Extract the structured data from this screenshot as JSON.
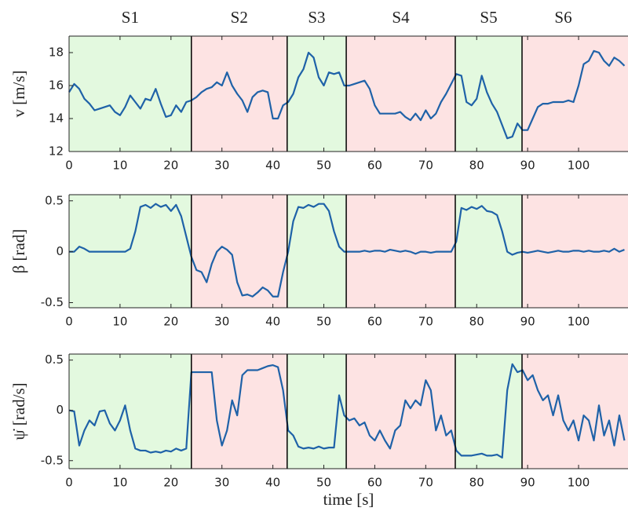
{
  "chart_data": [
    {
      "type": "line",
      "ylabel": "v [m/s]",
      "color": "#1f62a8",
      "segments": [
        {
          "label": "S1",
          "start": 0,
          "end": 24,
          "color": "#e3f9df"
        },
        {
          "label": "S2",
          "start": 24,
          "end": 42.8,
          "color": "#fde3e3"
        },
        {
          "label": "S3",
          "start": 42.8,
          "end": 54.4,
          "color": "#e3f9df"
        },
        {
          "label": "S4",
          "start": 54.4,
          "end": 75.8,
          "color": "#fde3e3"
        },
        {
          "label": "S5",
          "start": 75.8,
          "end": 88.9,
          "color": "#e3f9df"
        },
        {
          "label": "S6",
          "start": 88.9,
          "end": 109.7,
          "color": "#fde3e3"
        }
      ],
      "x": [
        0,
        1,
        2,
        3,
        4,
        5,
        6,
        7,
        8,
        9,
        10,
        11,
        12,
        13,
        14,
        15,
        16,
        17,
        18,
        19,
        20,
        21,
        22,
        23,
        24,
        25,
        26,
        27,
        28,
        29,
        30,
        31,
        32,
        33,
        34,
        35,
        36,
        37,
        38,
        39,
        40,
        41,
        42,
        43,
        44,
        45,
        46,
        47,
        48,
        49,
        50,
        51,
        52,
        53,
        54,
        55,
        56,
        57,
        58,
        59,
        60,
        61,
        62,
        63,
        64,
        65,
        66,
        67,
        68,
        69,
        70,
        71,
        72,
        73,
        74,
        75,
        76,
        77,
        78,
        79,
        80,
        81,
        82,
        83,
        84,
        85,
        86,
        87,
        88,
        89,
        90,
        91,
        92,
        93,
        94,
        95,
        96,
        97,
        98,
        99,
        100,
        101,
        102,
        103,
        104,
        105,
        106,
        107,
        108,
        109
      ],
      "values": [
        15.6,
        16.1,
        15.8,
        15.2,
        14.9,
        14.5,
        14.6,
        14.7,
        14.8,
        14.4,
        14.2,
        14.7,
        15.4,
        15.0,
        14.6,
        15.2,
        15.1,
        15.8,
        14.9,
        14.1,
        14.2,
        14.8,
        14.4,
        15.0,
        15.1,
        15.3,
        15.6,
        15.8,
        15.9,
        16.2,
        16.0,
        16.8,
        16.0,
        15.5,
        15.1,
        14.4,
        15.3,
        15.6,
        15.7,
        15.6,
        14.0,
        14.0,
        14.8,
        15.0,
        15.5,
        16.5,
        17.0,
        18.0,
        17.7,
        16.5,
        16.0,
        16.8,
        16.7,
        16.8,
        16.0,
        16.0,
        16.1,
        16.2,
        16.3,
        15.8,
        14.8,
        14.3,
        14.3,
        14.3,
        14.3,
        14.4,
        14.1,
        13.9,
        14.3,
        13.9,
        14.5,
        14.0,
        14.3,
        15.0,
        15.5,
        16.1,
        16.7,
        16.6,
        15.0,
        14.8,
        15.2,
        16.6,
        15.6,
        14.9,
        14.4,
        13.6,
        12.8,
        12.9,
        13.7,
        13.3,
        13.3,
        14.0,
        14.7,
        14.9,
        14.9,
        15.0,
        15.0,
        15.0,
        15.1,
        15.0,
        16.0,
        17.3,
        17.5,
        18.1,
        18.0,
        17.5,
        17.2,
        17.7,
        17.5,
        17.2
      ],
      "xlim": [
        0,
        109.7
      ],
      "xticks": [
        0,
        10,
        20,
        30,
        40,
        50,
        60,
        70,
        80,
        90,
        100
      ],
      "ylim": [
        12,
        19
      ],
      "yticks": [
        12,
        14,
        16,
        18
      ]
    },
    {
      "type": "line",
      "ylabel": "β [rad]",
      "color": "#1f62a8",
      "x": [
        0,
        1,
        2,
        3,
        4,
        5,
        6,
        7,
        8,
        9,
        10,
        11,
        12,
        13,
        14,
        15,
        16,
        17,
        18,
        19,
        20,
        21,
        22,
        23,
        24,
        25,
        26,
        27,
        28,
        29,
        30,
        31,
        32,
        33,
        34,
        35,
        36,
        37,
        38,
        39,
        40,
        41,
        42,
        43,
        44,
        45,
        46,
        47,
        48,
        49,
        50,
        51,
        52,
        53,
        54,
        55,
        56,
        57,
        58,
        59,
        60,
        61,
        62,
        63,
        64,
        65,
        66,
        67,
        68,
        69,
        70,
        71,
        72,
        73,
        74,
        75,
        76,
        77,
        78,
        79,
        80,
        81,
        82,
        83,
        84,
        85,
        86,
        87,
        88,
        89,
        90,
        91,
        92,
        93,
        94,
        95,
        96,
        97,
        98,
        99,
        100,
        101,
        102,
        103,
        104,
        105,
        106,
        107,
        108,
        109
      ],
      "values": [
        0,
        0,
        0.05,
        0.03,
        0,
        0,
        0,
        0,
        0,
        0,
        0,
        0,
        0.03,
        0.2,
        0.44,
        0.46,
        0.43,
        0.47,
        0.44,
        0.46,
        0.4,
        0.46,
        0.35,
        0.15,
        -0.05,
        -0.18,
        -0.2,
        -0.3,
        -0.12,
        0,
        0.05,
        0.02,
        -0.03,
        -0.3,
        -0.43,
        -0.42,
        -0.44,
        -0.4,
        -0.35,
        -0.38,
        -0.44,
        -0.44,
        -0.2,
        0,
        0.3,
        0.44,
        0.43,
        0.46,
        0.44,
        0.47,
        0.47,
        0.4,
        0.2,
        0.05,
        0,
        0,
        0,
        0,
        0.01,
        0,
        0.01,
        0.01,
        0,
        0.02,
        0.01,
        0,
        0.01,
        0,
        -0.02,
        0,
        0,
        -0.01,
        0,
        0,
        0,
        0,
        0.1,
        0.43,
        0.41,
        0.44,
        0.42,
        0.45,
        0.4,
        0.39,
        0.36,
        0.2,
        0,
        -0.03,
        -0.01,
        0,
        -0.01,
        0,
        0.01,
        0,
        -0.01,
        0,
        0.01,
        0,
        0,
        0.01,
        0.01,
        0,
        0.01,
        0,
        0,
        0.01,
        0,
        0.03,
        0,
        0.02
      ],
      "xlim": [
        0,
        109.7
      ],
      "xticks": [
        0,
        10,
        20,
        30,
        40,
        50,
        60,
        70,
        80,
        90,
        100
      ],
      "ylim": [
        -0.55,
        0.56
      ],
      "yticks": [
        -0.5,
        0,
        0.5
      ]
    },
    {
      "type": "line",
      "ylabel": "ψ̇ [rad/s]",
      "xlabel": "time [s]",
      "color": "#1f62a8",
      "x": [
        0,
        1,
        2,
        3,
        4,
        5,
        6,
        7,
        8,
        9,
        10,
        11,
        12,
        13,
        14,
        15,
        16,
        17,
        18,
        19,
        20,
        21,
        22,
        23,
        24,
        25,
        26,
        27,
        28,
        29,
        30,
        31,
        32,
        33,
        34,
        35,
        36,
        37,
        38,
        39,
        40,
        41,
        42,
        43,
        44,
        45,
        46,
        47,
        48,
        49,
        50,
        51,
        52,
        53,
        54,
        55,
        56,
        57,
        58,
        59,
        60,
        61,
        62,
        63,
        64,
        65,
        66,
        67,
        68,
        69,
        70,
        71,
        72,
        73,
        74,
        75,
        76,
        77,
        78,
        79,
        80,
        81,
        82,
        83,
        84,
        85,
        86,
        87,
        88,
        89,
        90,
        91,
        92,
        93,
        94,
        95,
        96,
        97,
        98,
        99,
        100,
        101,
        102,
        103,
        104,
        105,
        106,
        107,
        108,
        109
      ],
      "values": [
        0,
        -0.01,
        -0.35,
        -0.2,
        -0.1,
        -0.15,
        -0.01,
        0,
        -0.13,
        -0.2,
        -0.1,
        0.05,
        -0.2,
        -0.38,
        -0.4,
        -0.4,
        -0.42,
        -0.41,
        -0.42,
        -0.4,
        -0.41,
        -0.38,
        -0.4,
        -0.38,
        0.38,
        0.38,
        0.38,
        0.38,
        0.38,
        -0.1,
        -0.35,
        -0.2,
        0.1,
        -0.05,
        0.35,
        0.4,
        0.4,
        0.4,
        0.42,
        0.44,
        0.45,
        0.43,
        0.2,
        -0.2,
        -0.25,
        -0.36,
        -0.38,
        -0.37,
        -0.38,
        -0.36,
        -0.38,
        -0.37,
        -0.37,
        0.15,
        -0.05,
        -0.1,
        -0.08,
        -0.15,
        -0.12,
        -0.25,
        -0.3,
        -0.2,
        -0.3,
        -0.38,
        -0.2,
        -0.15,
        0.1,
        0.02,
        0.1,
        0.05,
        0.3,
        0.2,
        -0.2,
        -0.05,
        -0.25,
        -0.2,
        -0.4,
        -0.45,
        -0.45,
        -0.45,
        -0.44,
        -0.43,
        -0.45,
        -0.45,
        -0.44,
        -0.47,
        0.2,
        0.46,
        0.38,
        0.4,
        0.3,
        0.35,
        0.2,
        0.1,
        0.15,
        -0.05,
        0.15,
        -0.1,
        -0.2,
        -0.1,
        -0.3,
        -0.05,
        -0.1,
        -0.3,
        0.05,
        -0.25,
        -0.1,
        -0.35,
        -0.05,
        -0.3
      ],
      "xlim": [
        0,
        109.7
      ],
      "xticks": [
        0,
        10,
        20,
        30,
        40,
        50,
        60,
        70,
        80,
        90,
        100
      ],
      "ylim": [
        -0.58,
        0.56
      ],
      "yticks": [
        -0.5,
        0,
        0.5
      ]
    }
  ]
}
